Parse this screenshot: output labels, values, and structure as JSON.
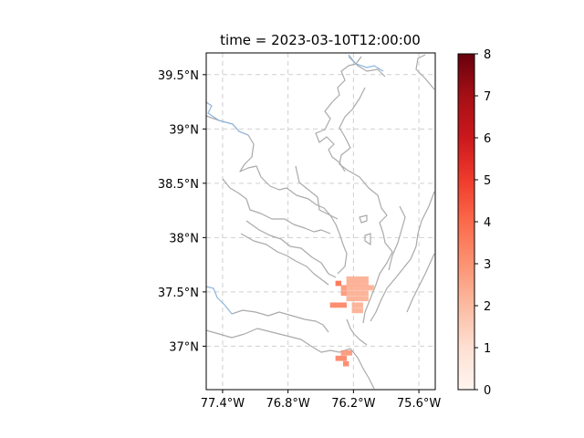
{
  "chart_data": {
    "type": "heatmap",
    "title": "time = 2023-03-10T12:00:00",
    "xlabel": "",
    "ylabel": "",
    "xlim": [
      -77.55,
      -75.45
    ],
    "ylim": [
      36.6,
      39.7
    ],
    "x_ticks": [
      {
        "value": -77.4,
        "label": "77.4°W"
      },
      {
        "value": -76.8,
        "label": "76.8°W"
      },
      {
        "value": -76.2,
        "label": "76.2°W"
      },
      {
        "value": -75.6,
        "label": "75.6°W"
      }
    ],
    "y_ticks": [
      {
        "value": 37.0,
        "label": "37°N"
      },
      {
        "value": 37.5,
        "label": "37.5°N"
      },
      {
        "value": 38.0,
        "label": "38°N"
      },
      {
        "value": 38.5,
        "label": "38.5°N"
      },
      {
        "value": 39.0,
        "label": "39°N"
      },
      {
        "value": 39.5,
        "label": "39.5°N"
      }
    ],
    "grid": true,
    "colorbar": {
      "range": [
        0,
        8
      ],
      "ticks": [
        0,
        1,
        2,
        3,
        4,
        5,
        6,
        7,
        8
      ],
      "tick_labels": [
        "0",
        "1",
        "2",
        "3",
        "4",
        "5",
        "6",
        "7",
        "8"
      ],
      "colormap": "Reds",
      "colors": [
        "#fff5f0",
        "#fee0d2",
        "#fcbba1",
        "#fc9272",
        "#fb6a4a",
        "#ef3b2c",
        "#cb181d",
        "#a50f15",
        "#67000d"
      ]
    },
    "cells": [
      {
        "lon": -76.24,
        "lat": 37.62,
        "value": 2.3
      },
      {
        "lon": -76.19,
        "lat": 37.62,
        "value": 2.3
      },
      {
        "lon": -76.14,
        "lat": 37.62,
        "value": 2.3
      },
      {
        "lon": -76.09,
        "lat": 37.62,
        "value": 2.3
      },
      {
        "lon": -76.34,
        "lat": 37.58,
        "value": 3.8
      },
      {
        "lon": -76.24,
        "lat": 37.58,
        "value": 2.3
      },
      {
        "lon": -76.19,
        "lat": 37.58,
        "value": 2.3
      },
      {
        "lon": -76.14,
        "lat": 37.58,
        "value": 2.3
      },
      {
        "lon": -76.09,
        "lat": 37.58,
        "value": 2.3
      },
      {
        "lon": -76.29,
        "lat": 37.54,
        "value": 2.9
      },
      {
        "lon": -76.24,
        "lat": 37.54,
        "value": 2.3
      },
      {
        "lon": -76.19,
        "lat": 37.54,
        "value": 2.3
      },
      {
        "lon": -76.14,
        "lat": 37.54,
        "value": 2.3
      },
      {
        "lon": -76.09,
        "lat": 37.54,
        "value": 2.3
      },
      {
        "lon": -76.04,
        "lat": 37.54,
        "value": 2.3
      },
      {
        "lon": -76.29,
        "lat": 37.49,
        "value": 2.9
      },
      {
        "lon": -76.24,
        "lat": 37.49,
        "value": 2.3
      },
      {
        "lon": -76.19,
        "lat": 37.49,
        "value": 2.3
      },
      {
        "lon": -76.14,
        "lat": 37.49,
        "value": 2.3
      },
      {
        "lon": -76.09,
        "lat": 37.49,
        "value": 2.3
      },
      {
        "lon": -76.24,
        "lat": 37.44,
        "value": 2.3
      },
      {
        "lon": -76.19,
        "lat": 37.44,
        "value": 2.3
      },
      {
        "lon": -76.14,
        "lat": 37.44,
        "value": 2.3
      },
      {
        "lon": -76.09,
        "lat": 37.44,
        "value": 2.3
      },
      {
        "lon": -76.39,
        "lat": 37.38,
        "value": 3.3
      },
      {
        "lon": -76.34,
        "lat": 37.38,
        "value": 3.3
      },
      {
        "lon": -76.29,
        "lat": 37.38,
        "value": 3.3
      },
      {
        "lon": -76.19,
        "lat": 37.38,
        "value": 2.3
      },
      {
        "lon": -76.14,
        "lat": 37.38,
        "value": 2.3
      },
      {
        "lon": -76.19,
        "lat": 37.33,
        "value": 2.3
      },
      {
        "lon": -76.14,
        "lat": 37.33,
        "value": 2.3
      },
      {
        "lon": -76.29,
        "lat": 36.94,
        "value": 2.9
      },
      {
        "lon": -76.24,
        "lat": 36.94,
        "value": 2.9
      },
      {
        "lon": -76.34,
        "lat": 36.89,
        "value": 3.3
      },
      {
        "lon": -76.29,
        "lat": 36.89,
        "value": 3.3
      },
      {
        "lon": -76.27,
        "lat": 36.84,
        "value": 3.3
      }
    ]
  }
}
